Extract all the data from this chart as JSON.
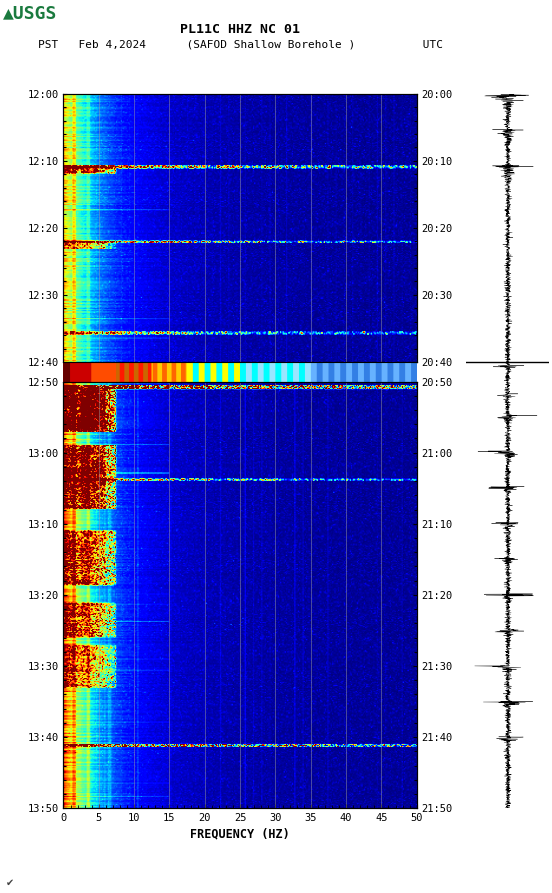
{
  "title_line1": "PL11C HHZ NC 01",
  "title_line2": "(SAFOD Shallow Borehole )",
  "date_label": "Feb 4,2024",
  "pst_label": "PST",
  "utc_label": "UTC",
  "left_times_panel1": [
    "12:00",
    "12:10",
    "12:20",
    "12:30",
    "12:40"
  ],
  "right_times_panel1": [
    "20:00",
    "20:10",
    "20:20",
    "20:30",
    "20:40"
  ],
  "left_times_panel2": [
    "12:50",
    "13:00",
    "13:10",
    "13:20",
    "13:30",
    "13:40",
    "13:50"
  ],
  "right_times_panel2": [
    "20:50",
    "21:00",
    "21:10",
    "21:20",
    "21:30",
    "21:40",
    "21:50"
  ],
  "freq_min": 0,
  "freq_max": 50,
  "freq_ticks": [
    0,
    5,
    10,
    15,
    20,
    25,
    30,
    35,
    40,
    45,
    50
  ],
  "xlabel": "FREQUENCY (HZ)",
  "bg_color": "#ffffff",
  "usgs_green": "#1a7a3e",
  "font_color": "#000000",
  "spectrogram_bg": "#00008b",
  "colormap": "jet",
  "watermark": "✔"
}
